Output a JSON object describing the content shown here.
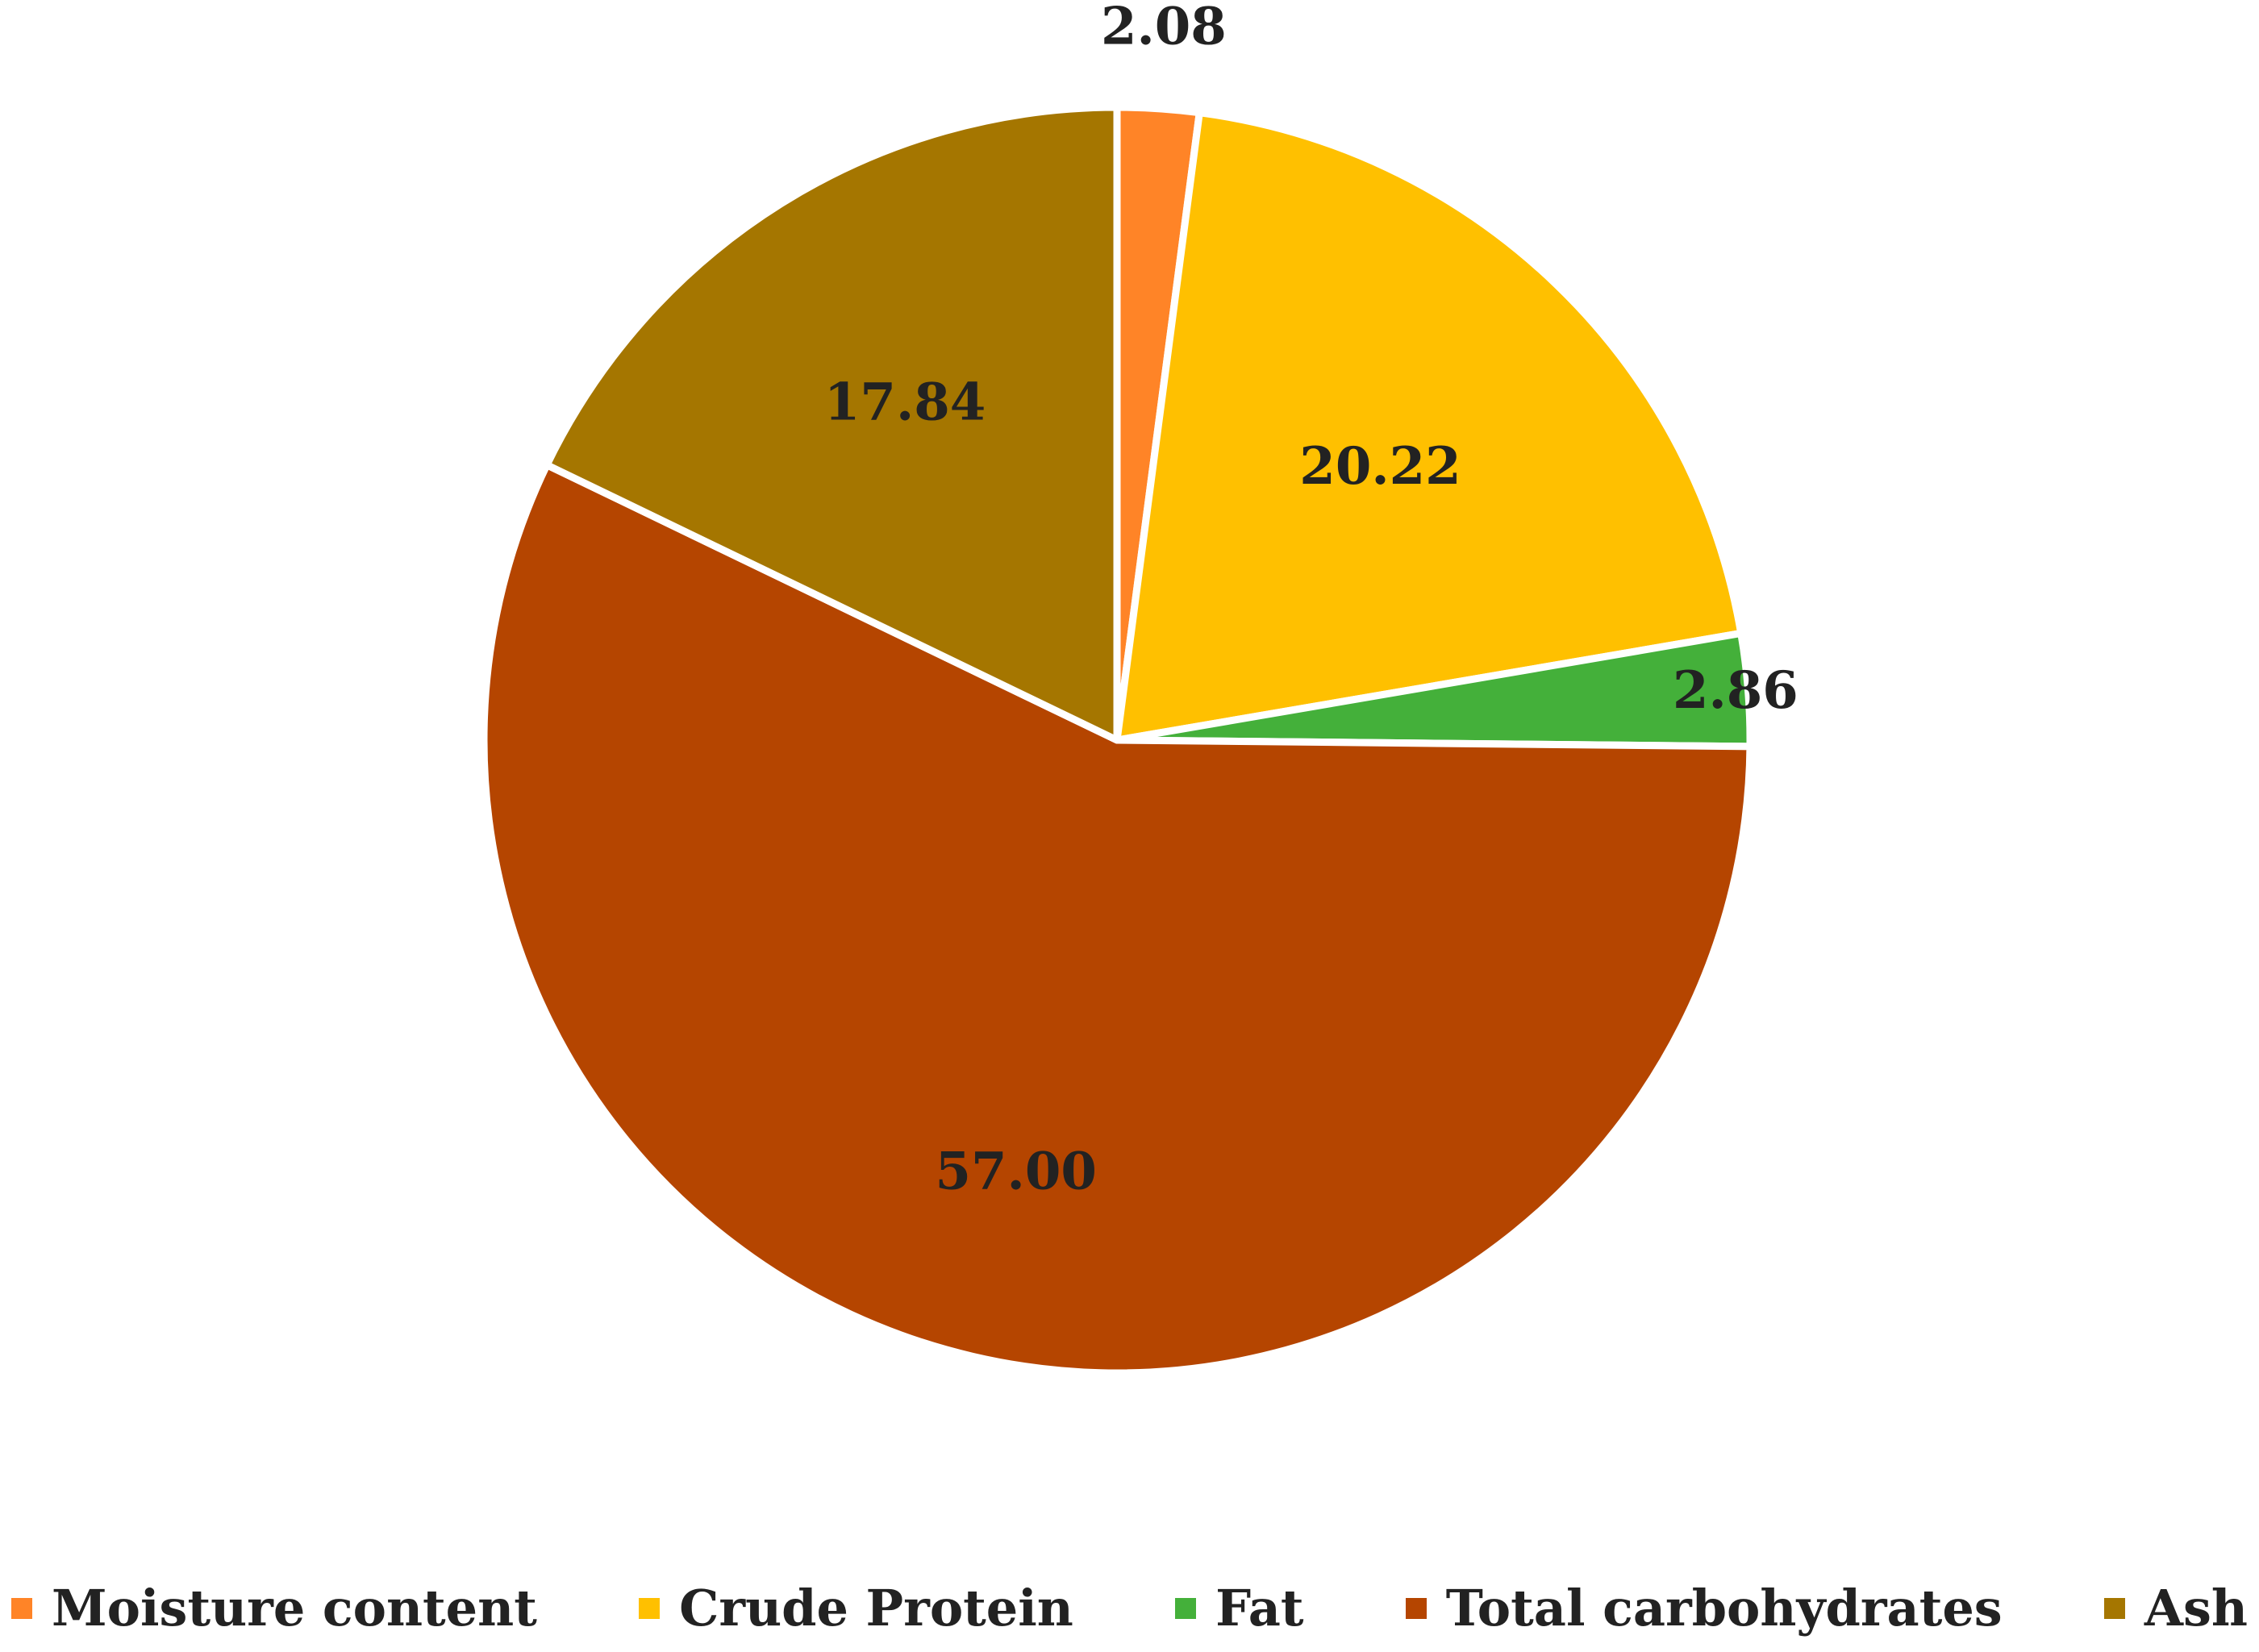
{
  "chart_data": {
    "type": "pie",
    "title": "",
    "start_angle": "12 o'clock",
    "direction": "clockwise",
    "slices": [
      {
        "label": "Moisture content",
        "value": 2.08,
        "value_label": "2.08",
        "color": "#FF8427"
      },
      {
        "label": "Crude Protein",
        "value": 20.22,
        "value_label": "20.22",
        "color": "#FFC000"
      },
      {
        "label": "Fat",
        "value": 2.86,
        "value_label": "2.86",
        "color": "#44B03A"
      },
      {
        "label": "Total carbohydrates",
        "value": 57.0,
        "value_label": "57.00",
        "color": "#B54500"
      },
      {
        "label": "Ash",
        "value": 17.84,
        "value_label": "17.84",
        "color": "#A57600"
      }
    ],
    "legend_position": "bottom",
    "slice_border_color": "#FFFFFF"
  }
}
